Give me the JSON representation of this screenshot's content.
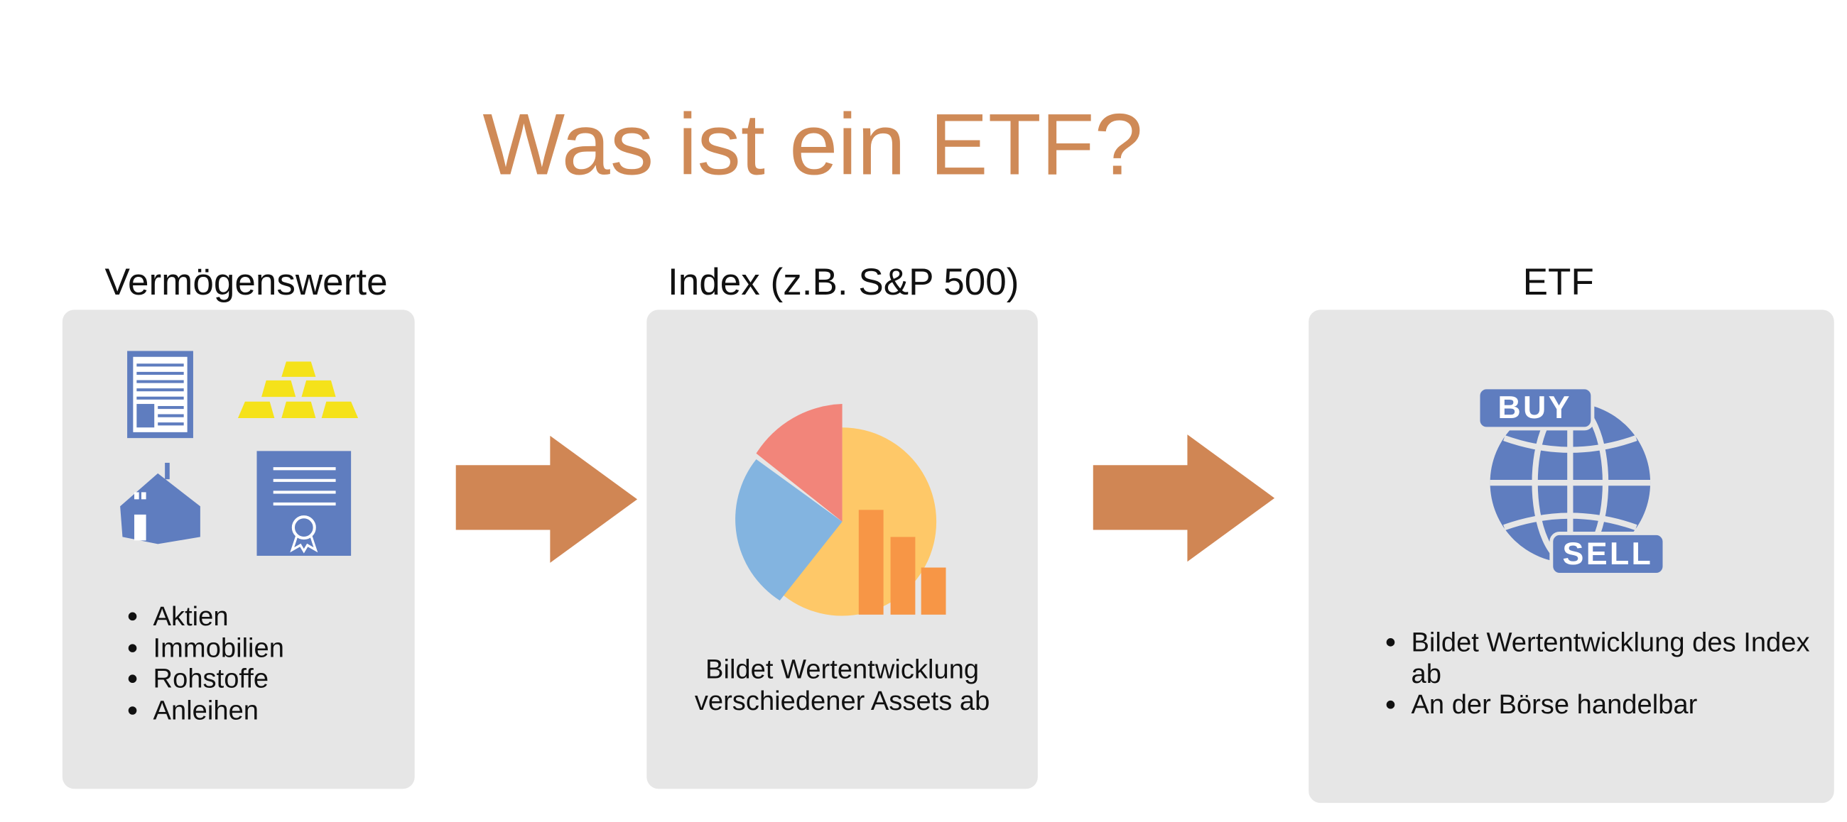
{
  "title": "Was ist ein ETF?",
  "columns": [
    {
      "heading": "Vermögenswerte",
      "bullets": [
        "Aktien",
        "Immobilien",
        "Rohstoffe",
        "Anleihen"
      ]
    },
    {
      "heading": "Index (z.B. S&P 500)",
      "text": "Bildet Wertentwicklung verschiedener Assets ab"
    },
    {
      "heading": "ETF",
      "bullets": [
        "Bildet Wertentwicklung des Index ab",
        "An der Börse handelbar"
      ],
      "icon": {
        "top": "BUY",
        "bottom": "SELL"
      }
    }
  ]
}
